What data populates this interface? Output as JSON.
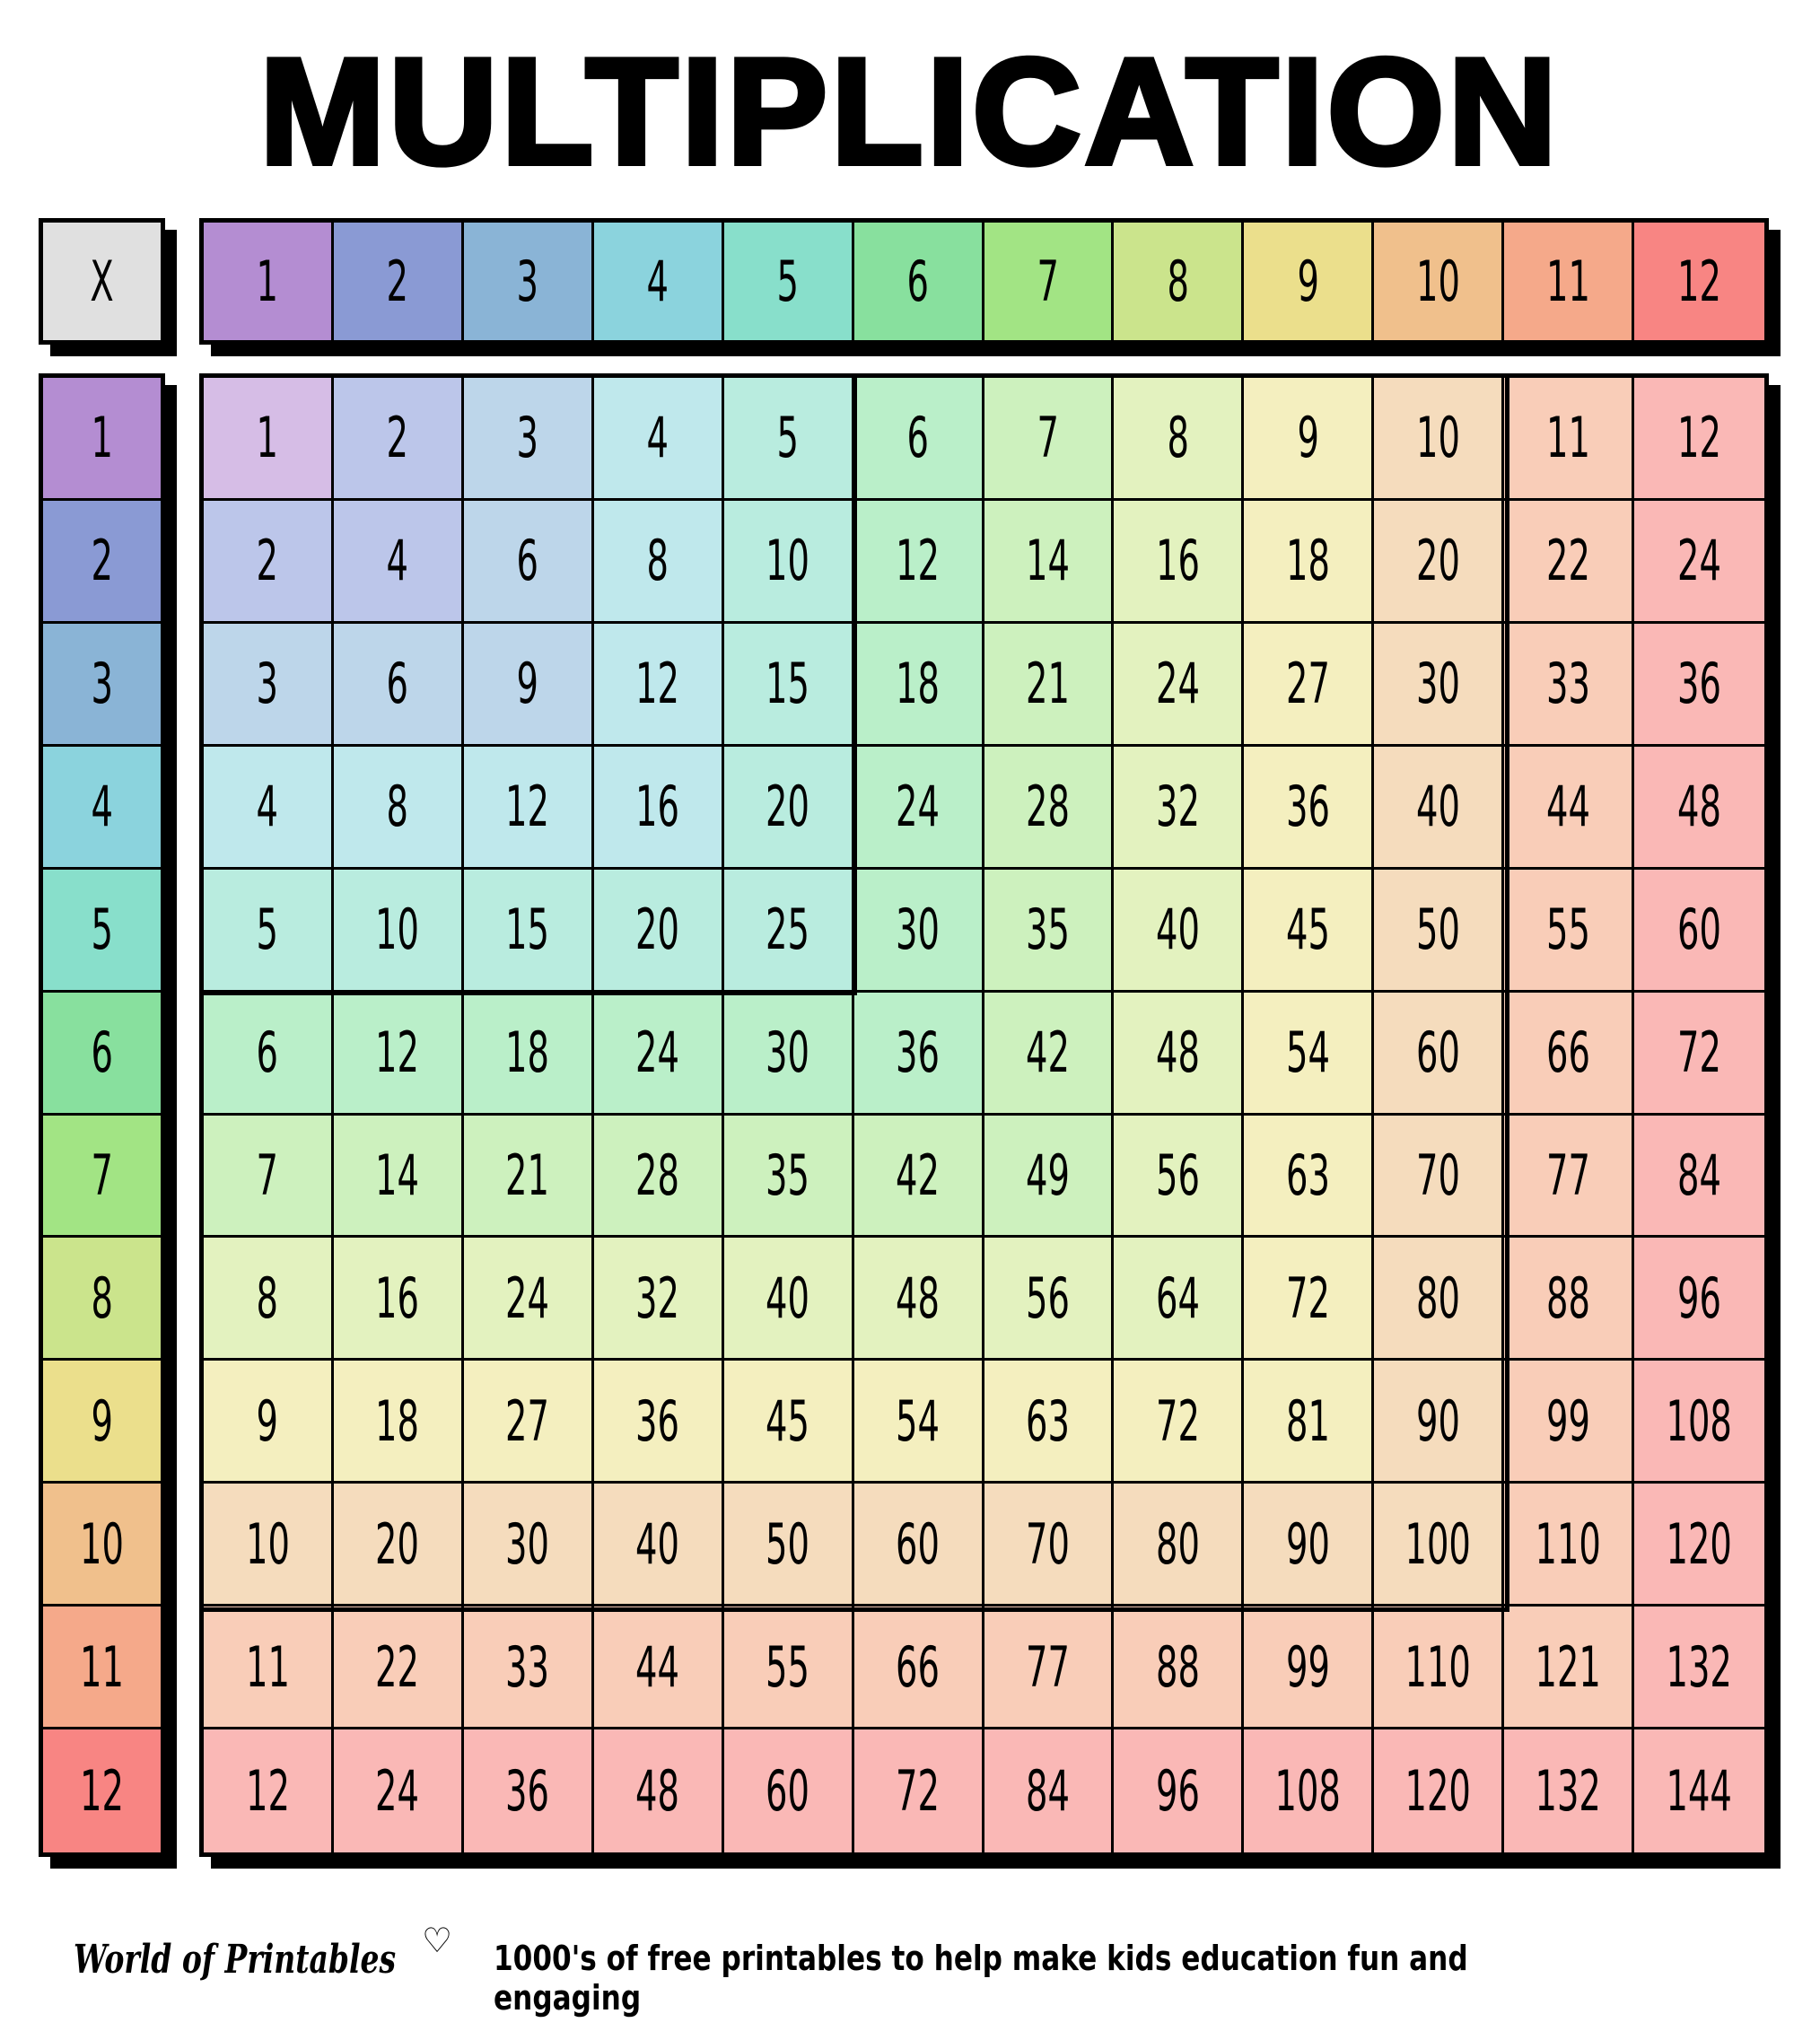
{
  "title": "MULTIPLICATION",
  "corner_label": "X",
  "headers": [
    1,
    2,
    3,
    4,
    5,
    6,
    7,
    8,
    9,
    10,
    11,
    12
  ],
  "header_colors": [
    "#b48dd2",
    "#8a9ad4",
    "#8ab4d6",
    "#8bd3dd",
    "#88dfcb",
    "#88e09e",
    "#a2e484",
    "#cbe48c",
    "#ebdf8c",
    "#f0c08c",
    "#f5a98a",
    "#f88583"
  ],
  "cell_colors": [
    "#d6bde6",
    "#bcc6ea",
    "#bdd6ea",
    "#bfe8ec",
    "#b9ecdf",
    "#baefc9",
    "#cdf1be",
    "#e3f2bf",
    "#f4efbf",
    "#f5dcbd",
    "#f9cdb8",
    "#fab8b6"
  ],
  "table": [
    [
      1,
      2,
      3,
      4,
      5,
      6,
      7,
      8,
      9,
      10,
      11,
      12
    ],
    [
      2,
      4,
      6,
      8,
      10,
      12,
      14,
      16,
      18,
      20,
      22,
      24
    ],
    [
      3,
      6,
      9,
      12,
      15,
      18,
      21,
      24,
      27,
      30,
      33,
      36
    ],
    [
      4,
      8,
      12,
      16,
      20,
      24,
      28,
      32,
      36,
      40,
      44,
      48
    ],
    [
      5,
      10,
      15,
      20,
      25,
      30,
      35,
      40,
      45,
      50,
      55,
      60
    ],
    [
      6,
      12,
      18,
      24,
      30,
      36,
      42,
      48,
      54,
      60,
      66,
      72
    ],
    [
      7,
      14,
      21,
      28,
      35,
      42,
      49,
      56,
      63,
      70,
      77,
      84
    ],
    [
      8,
      16,
      24,
      32,
      40,
      48,
      56,
      64,
      72,
      80,
      88,
      96
    ],
    [
      9,
      18,
      27,
      36,
      45,
      54,
      63,
      72,
      81,
      90,
      99,
      108
    ],
    [
      10,
      20,
      30,
      40,
      50,
      60,
      70,
      80,
      90,
      100,
      110,
      120
    ],
    [
      11,
      22,
      33,
      44,
      55,
      66,
      77,
      88,
      99,
      110,
      121,
      132
    ],
    [
      12,
      24,
      36,
      48,
      60,
      72,
      84,
      96,
      108,
      120,
      132,
      144
    ]
  ],
  "footer": {
    "brand": "World of Printables",
    "brand_icon": "heart-icon",
    "tagline": "1000's of free printables to help make kids education fun and engaging"
  }
}
